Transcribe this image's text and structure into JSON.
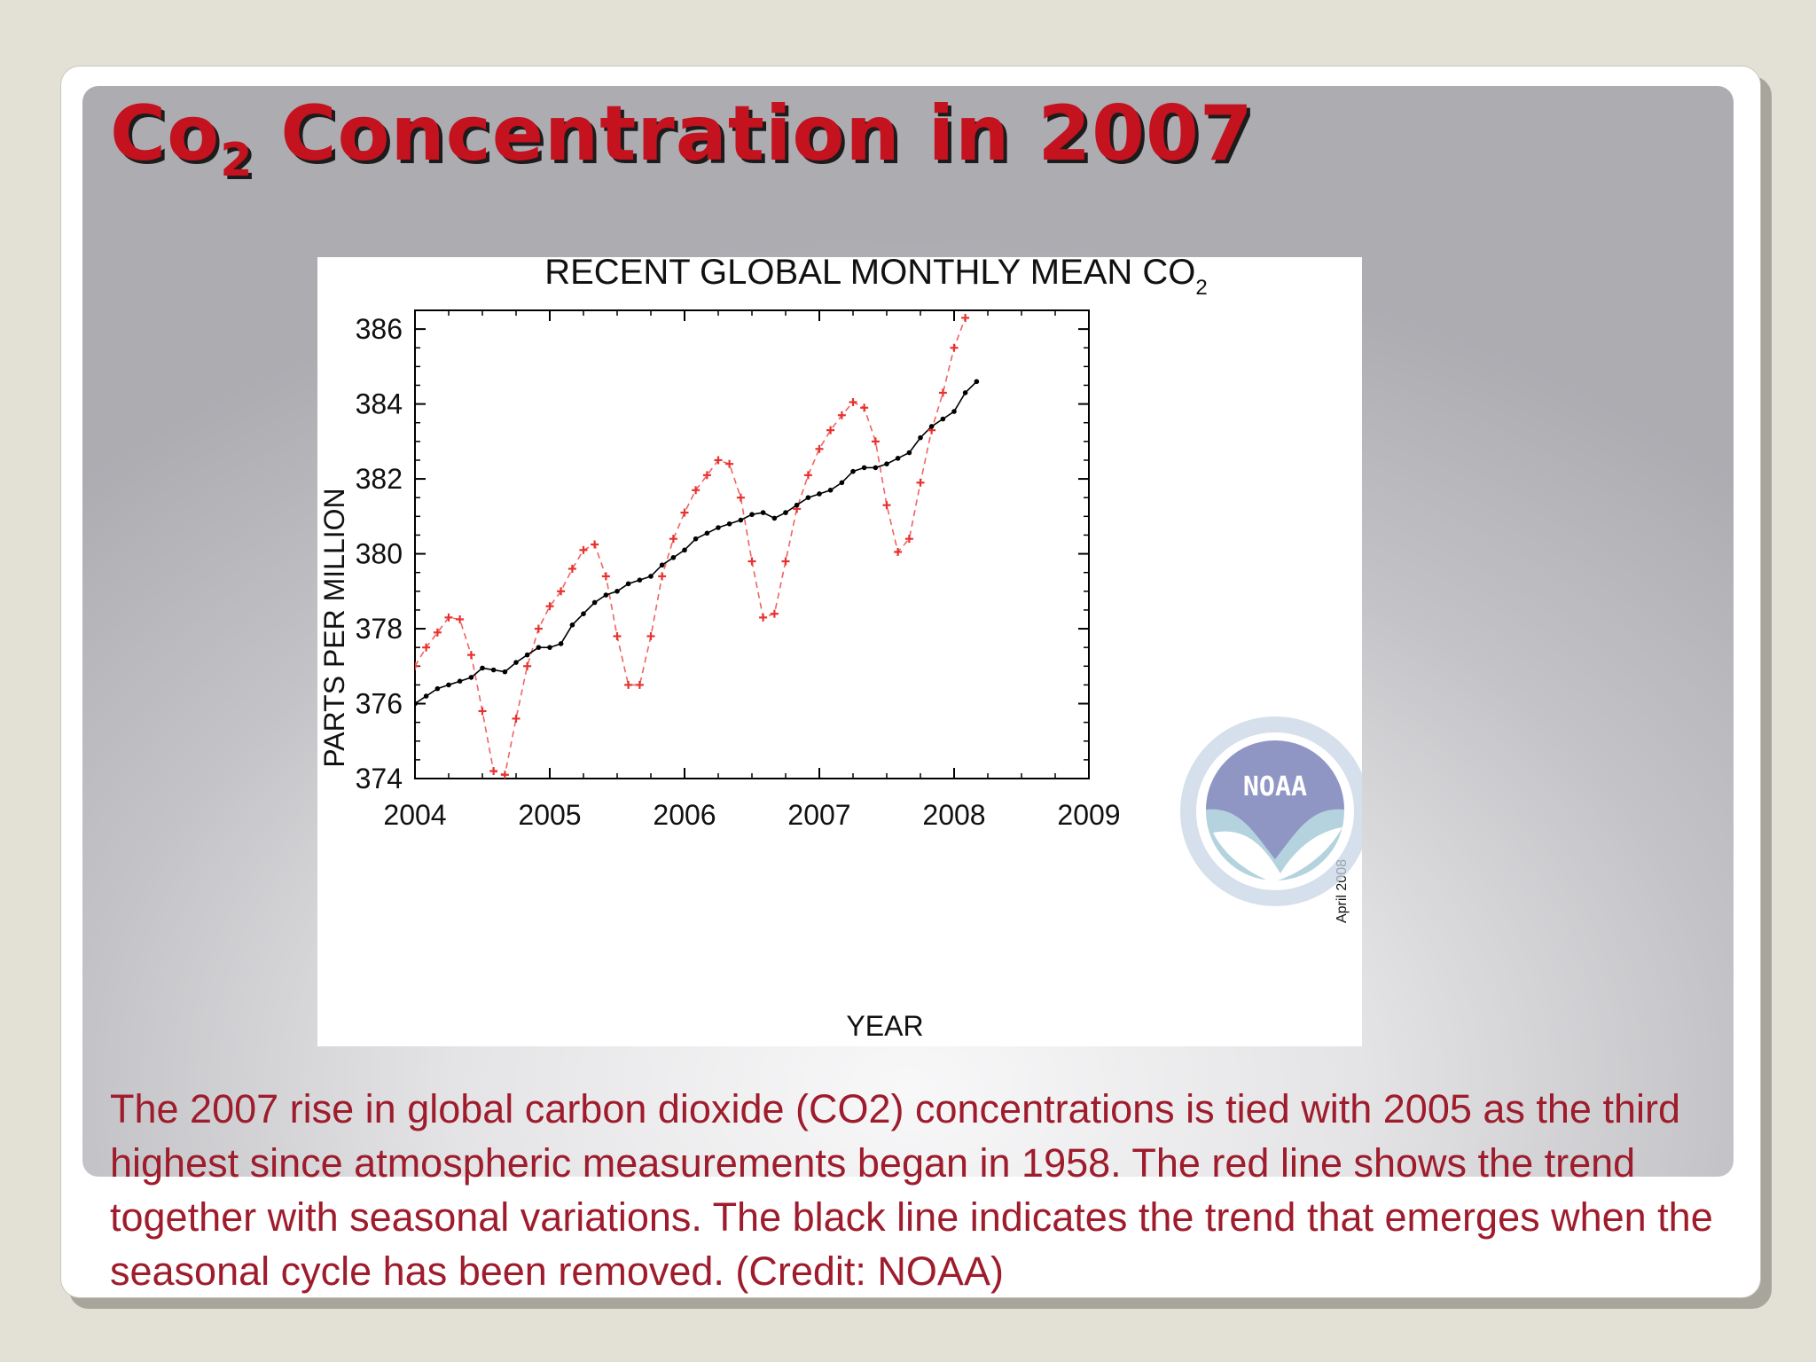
{
  "slide": {
    "title_main": "Co",
    "title_sub": "2",
    "title_rest": " Concentration in 2007",
    "caption": "The 2007 rise in global carbon dioxide (CO2) concentrations is tied with 2005 as the third highest since atmospheric measurements began in 1958. The red line shows the trend together with seasonal variations. The black line indicates the trend that emerges when the seasonal cycle has been removed. (Credit: NOAA)"
  },
  "chart_data": {
    "type": "line",
    "title": "RECENT GLOBAL MONTHLY MEAN CO",
    "title_sub": "2",
    "xlabel": "YEAR",
    "ylabel": "PARTS PER MILLION",
    "xlim": [
      2004,
      2009
    ],
    "ylim": [
      374,
      386.5
    ],
    "xticks": [
      "2004",
      "2005",
      "2006",
      "2007",
      "2008",
      "2009"
    ],
    "yticks": [
      "374",
      "376",
      "378",
      "380",
      "382",
      "384",
      "386"
    ],
    "date_stamp": "April 2008",
    "logo_text": "NOAA",
    "colors": {
      "seasonal": "#e8322e",
      "trend": "#000000"
    },
    "series": [
      {
        "key": "seasonal",
        "values": [
          [
            2004.0,
            377.0
          ],
          [
            2004.083,
            377.5
          ],
          [
            2004.167,
            377.9
          ],
          [
            2004.25,
            378.3
          ],
          [
            2004.333,
            378.25
          ],
          [
            2004.417,
            377.3
          ],
          [
            2004.5,
            375.8
          ],
          [
            2004.583,
            374.2
          ],
          [
            2004.667,
            374.1
          ],
          [
            2004.75,
            375.6
          ],
          [
            2004.833,
            377.0
          ],
          [
            2004.917,
            378.0
          ],
          [
            2005.0,
            378.6
          ],
          [
            2005.083,
            379.0
          ],
          [
            2005.167,
            379.6
          ],
          [
            2005.25,
            380.1
          ],
          [
            2005.333,
            380.25
          ],
          [
            2005.417,
            379.4
          ],
          [
            2005.5,
            377.8
          ],
          [
            2005.583,
            376.5
          ],
          [
            2005.667,
            376.5
          ],
          [
            2005.75,
            377.8
          ],
          [
            2005.833,
            379.4
          ],
          [
            2005.917,
            380.4
          ],
          [
            2006.0,
            381.1
          ],
          [
            2006.083,
            381.7
          ],
          [
            2006.167,
            382.1
          ],
          [
            2006.25,
            382.5
          ],
          [
            2006.333,
            382.4
          ],
          [
            2006.417,
            381.5
          ],
          [
            2006.5,
            379.8
          ],
          [
            2006.583,
            378.3
          ],
          [
            2006.667,
            378.4
          ],
          [
            2006.75,
            379.8
          ],
          [
            2006.833,
            381.2
          ],
          [
            2006.917,
            382.1
          ],
          [
            2007.0,
            382.8
          ],
          [
            2007.083,
            383.3
          ],
          [
            2007.167,
            383.7
          ],
          [
            2007.25,
            384.05
          ],
          [
            2007.333,
            383.9
          ],
          [
            2007.417,
            383.0
          ],
          [
            2007.5,
            381.3
          ],
          [
            2007.583,
            380.05
          ],
          [
            2007.667,
            380.4
          ],
          [
            2007.75,
            381.9
          ],
          [
            2007.833,
            383.3
          ],
          [
            2007.917,
            384.3
          ],
          [
            2008.0,
            385.5
          ],
          [
            2008.083,
            386.3
          ]
        ]
      },
      {
        "key": "trend",
        "values": [
          [
            2004.0,
            376.0
          ],
          [
            2004.083,
            376.2
          ],
          [
            2004.167,
            376.4
          ],
          [
            2004.25,
            376.5
          ],
          [
            2004.333,
            376.6
          ],
          [
            2004.417,
            376.7
          ],
          [
            2004.5,
            376.95
          ],
          [
            2004.583,
            376.9
          ],
          [
            2004.667,
            376.85
          ],
          [
            2004.75,
            377.1
          ],
          [
            2004.833,
            377.3
          ],
          [
            2004.917,
            377.5
          ],
          [
            2005.0,
            377.5
          ],
          [
            2005.083,
            377.6
          ],
          [
            2005.167,
            378.1
          ],
          [
            2005.25,
            378.4
          ],
          [
            2005.333,
            378.7
          ],
          [
            2005.417,
            378.9
          ],
          [
            2005.5,
            379.0
          ],
          [
            2005.583,
            379.2
          ],
          [
            2005.667,
            379.3
          ],
          [
            2005.75,
            379.4
          ],
          [
            2005.833,
            379.7
          ],
          [
            2005.917,
            379.9
          ],
          [
            2006.0,
            380.1
          ],
          [
            2006.083,
            380.4
          ],
          [
            2006.167,
            380.55
          ],
          [
            2006.25,
            380.7
          ],
          [
            2006.333,
            380.8
          ],
          [
            2006.417,
            380.9
          ],
          [
            2006.5,
            381.05
          ],
          [
            2006.583,
            381.1
          ],
          [
            2006.667,
            380.95
          ],
          [
            2006.75,
            381.1
          ],
          [
            2006.833,
            381.3
          ],
          [
            2006.917,
            381.5
          ],
          [
            2007.0,
            381.6
          ],
          [
            2007.083,
            381.7
          ],
          [
            2007.167,
            381.9
          ],
          [
            2007.25,
            382.2
          ],
          [
            2007.333,
            382.3
          ],
          [
            2007.417,
            382.3
          ],
          [
            2007.5,
            382.4
          ],
          [
            2007.583,
            382.55
          ],
          [
            2007.667,
            382.7
          ],
          [
            2007.75,
            383.1
          ],
          [
            2007.833,
            383.4
          ],
          [
            2007.917,
            383.6
          ],
          [
            2008.0,
            383.8
          ],
          [
            2008.083,
            384.3
          ],
          [
            2008.167,
            384.6
          ]
        ]
      }
    ]
  }
}
